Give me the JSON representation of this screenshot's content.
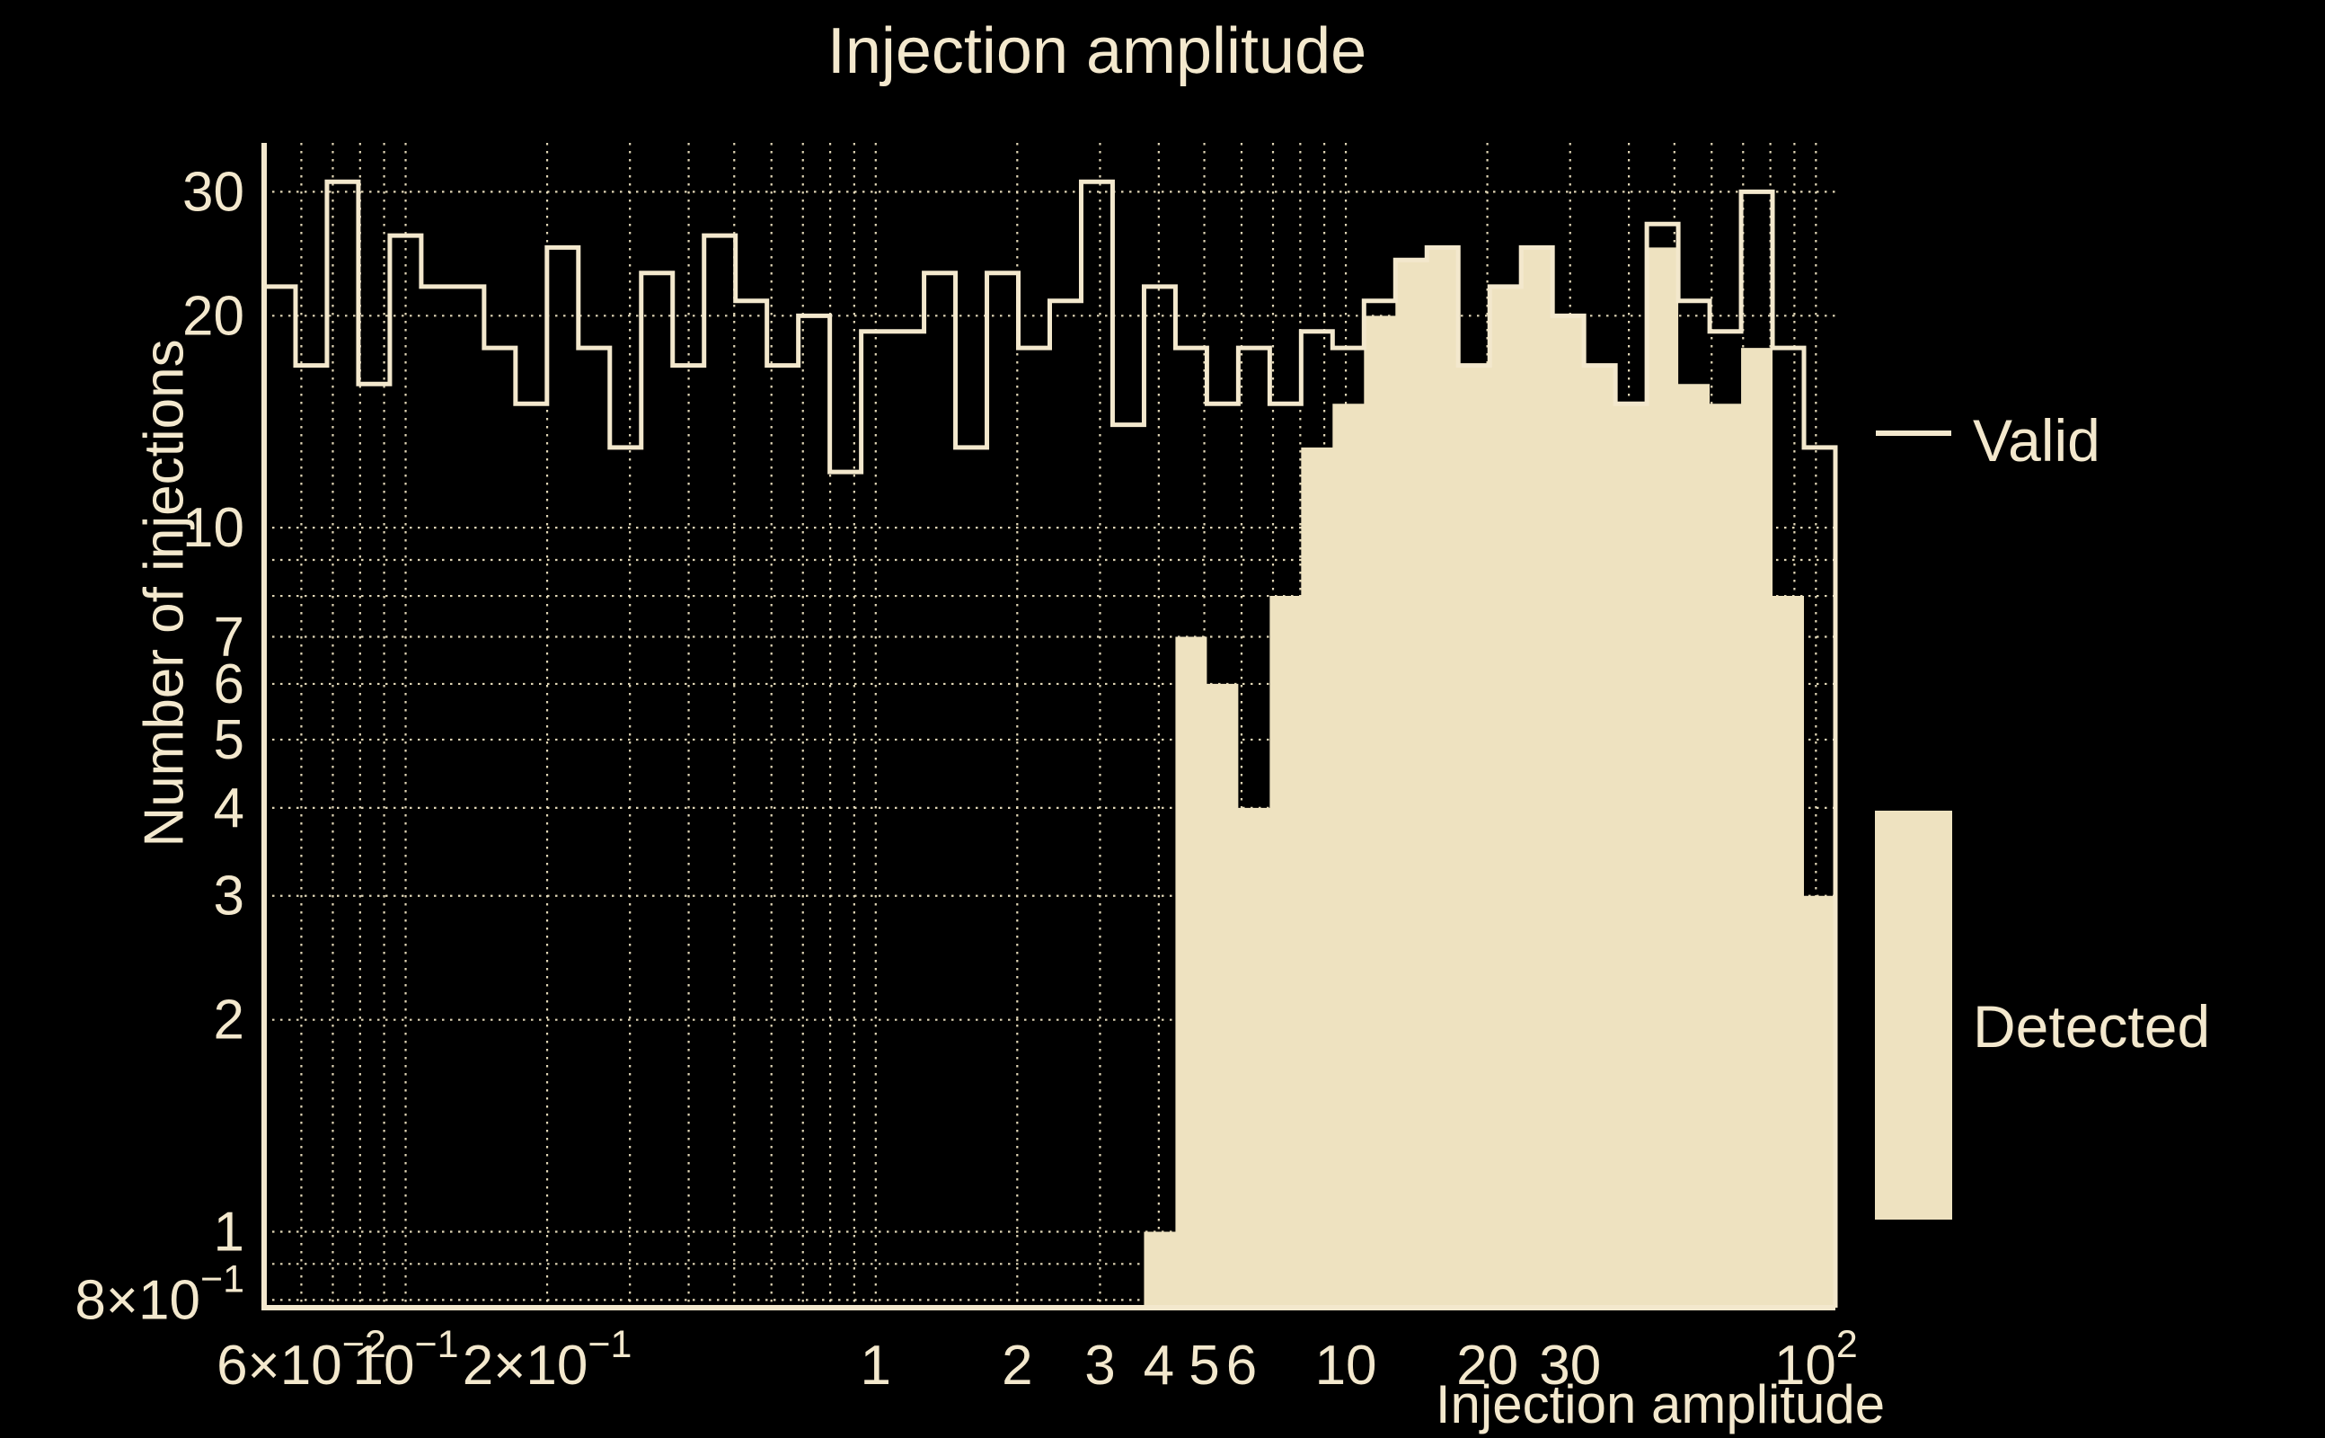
{
  "title": "Injection amplitude",
  "legend": {
    "valid_label": "Valid",
    "detected_label": "Detected"
  },
  "colors": {
    "background": "#000000",
    "text": "#f3e8cd",
    "valid_line": "#f3e8cd",
    "detected_fill": "#eee2c0",
    "grid": "#eee2c0",
    "spine": "#f3e8cd"
  },
  "chart_data": {
    "type": "bar",
    "subtype": "log-log step histogram, two overlaid series",
    "title": "Injection amplitude",
    "xlabel": "Injection amplitude",
    "ylabel": "Number of injections",
    "xscale": "log",
    "yscale": "log",
    "xlim": [
      0.05,
      110
    ],
    "ylim": [
      0.78,
      35.2
    ],
    "bins": {
      "min": 0.05,
      "max": 110,
      "count": 50,
      "spacing": "log"
    },
    "series": [
      {
        "name": "Valid",
        "style": "step-outline",
        "values": [
          22,
          17,
          31,
          16,
          26,
          22,
          22,
          18,
          15,
          25,
          18,
          13,
          23,
          17,
          26,
          21,
          17,
          20,
          12,
          19,
          19,
          23,
          13,
          23,
          18,
          21,
          31,
          14,
          22,
          18,
          15,
          18,
          15,
          19,
          18,
          21,
          24,
          25,
          17,
          22,
          25,
          20,
          17,
          15,
          27,
          21,
          19,
          30,
          18,
          13
        ]
      },
      {
        "name": "Detected",
        "style": "step-filled",
        "values": [
          0,
          0,
          0,
          0,
          0,
          0,
          0,
          0,
          0,
          0,
          0,
          0,
          0,
          0,
          0,
          0,
          0,
          0,
          0,
          0,
          0,
          0,
          0,
          0,
          0,
          0,
          0,
          0,
          1,
          7,
          6,
          4,
          8,
          13,
          15,
          20,
          24,
          25,
          17,
          22,
          25,
          20,
          17,
          15,
          25,
          16,
          15,
          18,
          8,
          3
        ]
      }
    ],
    "x_ticks": [
      {
        "v": 0.06,
        "base": "6×10",
        "sup": "−2"
      },
      {
        "v": 0.1,
        "base": "10",
        "sup": "−1"
      },
      {
        "v": 0.2,
        "base": "2×10",
        "sup": "−1"
      },
      {
        "v": 1,
        "base": "1",
        "sup": ""
      },
      {
        "v": 2,
        "base": "2",
        "sup": ""
      },
      {
        "v": 3,
        "base": "3",
        "sup": ""
      },
      {
        "v": 4,
        "base": "4",
        "sup": ""
      },
      {
        "v": 5,
        "base": "5",
        "sup": ""
      },
      {
        "v": 6,
        "base": "6",
        "sup": ""
      },
      {
        "v": 10,
        "base": "10",
        "sup": ""
      },
      {
        "v": 20,
        "base": "20",
        "sup": ""
      },
      {
        "v": 30,
        "base": "30",
        "sup": ""
      },
      {
        "v": 100,
        "base": "10",
        "sup": "2"
      }
    ],
    "y_ticks": [
      {
        "v": 30,
        "base": "30",
        "sup": ""
      },
      {
        "v": 20,
        "base": "20",
        "sup": ""
      },
      {
        "v": 10,
        "base": "10",
        "sup": ""
      },
      {
        "v": 7,
        "base": "7",
        "sup": ""
      },
      {
        "v": 6,
        "base": "6",
        "sup": ""
      },
      {
        "v": 5,
        "base": "5",
        "sup": ""
      },
      {
        "v": 4,
        "base": "4",
        "sup": ""
      },
      {
        "v": 3,
        "base": "3",
        "sup": ""
      },
      {
        "v": 2,
        "base": "2",
        "sup": ""
      },
      {
        "v": 1,
        "base": "1",
        "sup": ""
      },
      {
        "v": 0.8,
        "base": "8×10",
        "sup": "−1"
      }
    ],
    "x_grid": [
      0.06,
      0.07,
      0.08,
      0.09,
      0.1,
      0.2,
      0.3,
      0.4,
      0.5,
      0.6,
      0.7,
      0.8,
      0.9,
      1,
      2,
      3,
      4,
      5,
      6,
      7,
      8,
      9,
      10,
      20,
      30,
      40,
      50,
      60,
      70,
      80,
      90,
      100
    ],
    "y_grid": [
      0.8,
      0.9,
      1,
      2,
      3,
      4,
      5,
      6,
      7,
      8,
      9,
      10,
      20,
      30
    ],
    "grid_style": "dotted",
    "legend_position": "right side, outside axes; Valid as line swatch, Detected as tall filled rectangle"
  }
}
